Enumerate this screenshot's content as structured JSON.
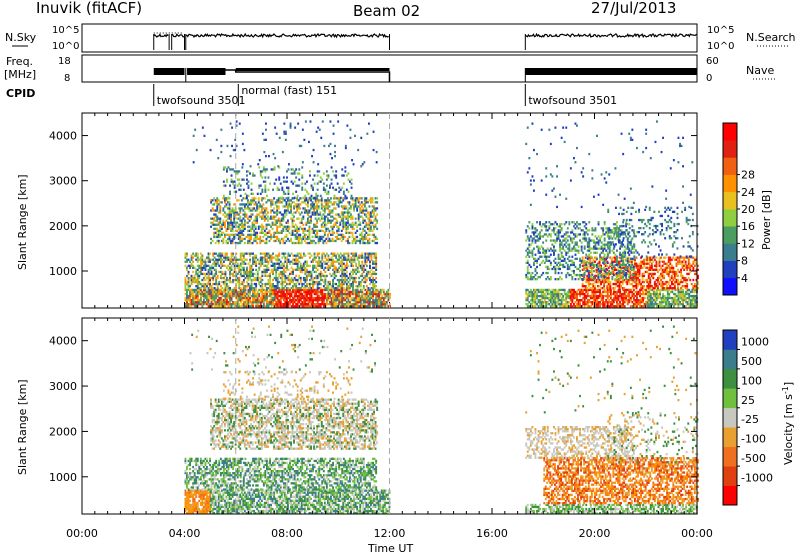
{
  "header": {
    "station": "Inuvik (fitACF)",
    "beam": "Beam 02",
    "date": "27/Jul/2013"
  },
  "labels": {
    "nsky": "N.Sky",
    "nsearch": "N.Search",
    "freq_line1": "Freq.",
    "freq_line2": "[MHz]",
    "nave": "Nave",
    "cpid": "CPID",
    "slant_range": "Slant Range [km]",
    "x_axis": "Time UT",
    "power": "Power [dB]",
    "velocity": "Velocity [m s",
    "velocity_exp": "-1",
    "velocity_close": "]"
  },
  "noise_axis": {
    "left_ticks": [
      "10^5",
      "10^0"
    ],
    "right_ticks": [
      "10^5",
      "10^0"
    ]
  },
  "freq_axis": {
    "left_ticks": [
      "18",
      "8"
    ],
    "right_ticks": [
      "60",
      "0"
    ]
  },
  "cpid_labels": [
    {
      "text": "twofsound 3501",
      "time": 2.8
    },
    {
      "text": "normal (fast) 151",
      "time": 6.1
    },
    {
      "text": "twofsound 3501",
      "time": 17.3
    }
  ],
  "chart_data": [
    {
      "type": "heatmap",
      "title": "Power",
      "xlabel": "Time UT",
      "ylabel": "Slant Range [km]",
      "xlim": [
        0,
        24
      ],
      "ylim": [
        180,
        4500
      ],
      "x_ticks": [
        "00:00",
        "04:00",
        "08:00",
        "12:00",
        "16:00",
        "20:00",
        "00:00"
      ],
      "y_ticks": [
        1000,
        2000,
        3000,
        4000
      ],
      "colorbar": {
        "label": "Power [dB]",
        "ticks": [
          4,
          8,
          12,
          16,
          20,
          24,
          28
        ],
        "colors": [
          "#1010ff",
          "#2040c0",
          "#3a7d8c",
          "#4b9e5f",
          "#8fcf3f",
          "#e8c020",
          "#ff9000",
          "#f06010",
          "#e02010",
          "#ff0000"
        ]
      },
      "data_coverage": [
        {
          "start": 4.0,
          "end": 12.0
        },
        {
          "start": 17.3,
          "end": 24.0
        }
      ]
    },
    {
      "type": "heatmap",
      "title": "Velocity",
      "xlabel": "Time UT",
      "ylabel": "Slant Range [km]",
      "xlim": [
        0,
        24
      ],
      "ylim": [
        180,
        4500
      ],
      "x_ticks": [
        "00:00",
        "04:00",
        "08:00",
        "12:00",
        "16:00",
        "20:00",
        "00:00"
      ],
      "y_ticks": [
        1000,
        2000,
        3000,
        4000
      ],
      "colorbar": {
        "label": "Velocity [m s-1]",
        "ticks": [
          1000,
          500,
          100,
          25,
          -25,
          -100,
          -500,
          -1000
        ],
        "colors": [
          "#2040c0",
          "#3a7d8c",
          "#3c9040",
          "#70c040",
          "#c8c8c0",
          "#e8a030",
          "#f07020",
          "#e04010",
          "#ff0000"
        ]
      },
      "data_coverage": [
        {
          "start": 4.0,
          "end": 12.0
        },
        {
          "start": 17.3,
          "end": 24.0
        }
      ]
    }
  ]
}
